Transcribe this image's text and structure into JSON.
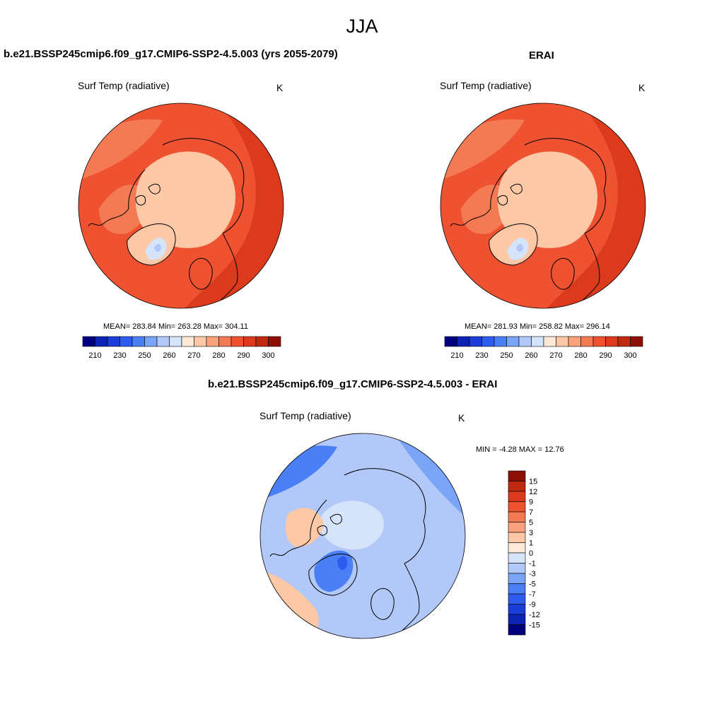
{
  "season": "JJA",
  "colors": {
    "abs_scale": [
      "#00007f",
      "#0c23b4",
      "#1a3dd8",
      "#2f5cf0",
      "#4a7ff5",
      "#7aa4f5",
      "#b1c8f8",
      "#d6e4fb",
      "#fce9d8",
      "#fcc8a6",
      "#f9a27d",
      "#f47a53",
      "#ee5230",
      "#db3a1c",
      "#bf2a10",
      "#8c1005"
    ],
    "diff_scale": [
      "#8c1005",
      "#bf2a10",
      "#db3a1c",
      "#ee5230",
      "#f47a53",
      "#f9a27d",
      "#fcc8a6",
      "#fce9d8",
      "#d6e4fb",
      "#b1c8f8",
      "#7aa4f5",
      "#4a7ff5",
      "#2f5cf0",
      "#1a3dd8",
      "#0c23b4",
      "#00007f"
    ],
    "coast": "#000000"
  },
  "panels": {
    "model": {
      "title": "b.e21.BSSP245cmip6.f09_g17.CMIP6-SSP2-4.5.003 (yrs 2055-2079)",
      "subtitle": "Surf Temp (radiative)",
      "unit": "K",
      "stats": "MEAN= 283.84  Min= 263.28  Max= 304.11",
      "ticks": [
        "210",
        "230",
        "250",
        "260",
        "270",
        "280",
        "290",
        "300"
      ]
    },
    "obs": {
      "title": "ERAI",
      "subtitle": "Surf Temp (radiative)",
      "unit": "K",
      "stats": "MEAN= 281.93  Min= 258.82  Max= 296.14",
      "ticks": [
        "210",
        "230",
        "250",
        "260",
        "270",
        "280",
        "290",
        "300"
      ]
    },
    "diff": {
      "title": "b.e21.BSSP245cmip6.f09_g17.CMIP6-SSP2-4.5.003 - ERAI",
      "subtitle": "Surf Temp (radiative)",
      "unit": "K",
      "minmax": "MIN =  -4.28 MAX =  12.76",
      "ticks": [
        "15",
        "12",
        "9",
        "7",
        "5",
        "3",
        "1",
        "0",
        "-1",
        "-3",
        "-5",
        "-7",
        "-9",
        "-12",
        "-15"
      ]
    }
  }
}
